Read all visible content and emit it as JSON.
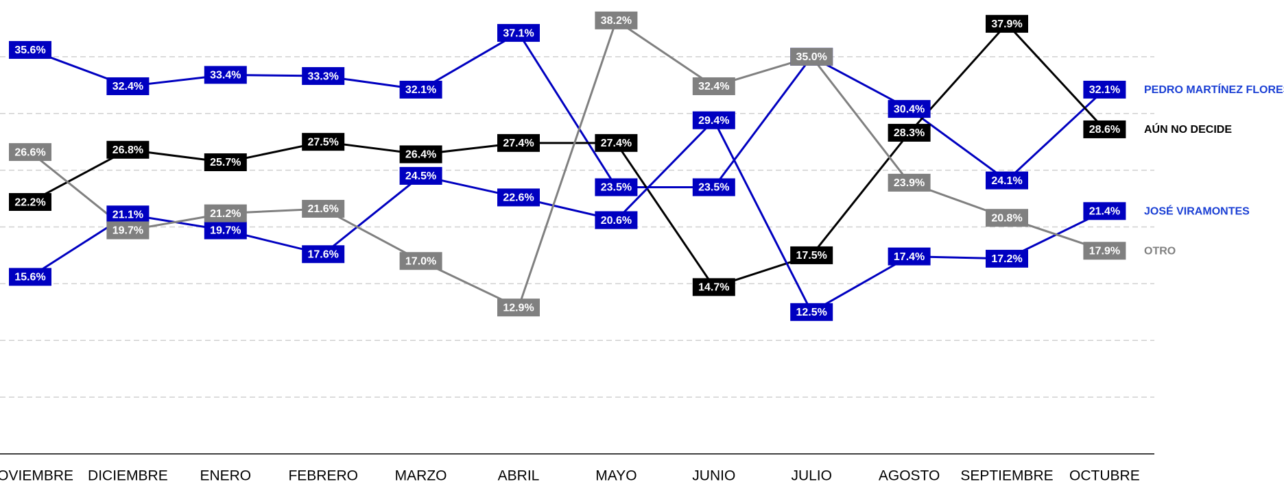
{
  "chart_data": {
    "type": "line",
    "categories": [
      "NOVIEMBRE",
      "DICIEMBRE",
      "ENERO",
      "FEBRERO",
      "MARZO",
      "ABRIL",
      "MAYO",
      "JUNIO",
      "JULIO",
      "AGOSTO",
      "SEPTIEMBRE",
      "OCTUBRE"
    ],
    "ylim": [
      0,
      40
    ],
    "yticks": [
      5,
      10,
      15,
      20,
      25,
      30,
      35
    ],
    "grid": true,
    "series": [
      {
        "name": "PEDRO MARTÍNEZ FLORES",
        "color": "#0000c0",
        "label_color": "#1a3fd4",
        "values": [
          35.6,
          32.4,
          33.4,
          33.3,
          32.1,
          37.1,
          23.5,
          23.5,
          35.0,
          30.4,
          24.1,
          32.1
        ],
        "value_labels": [
          "35.6%",
          "32.4%",
          "33.4%",
          "33.3%",
          "32.1%",
          "37.1%",
          "23.5%",
          "23.5%",
          "35.0%",
          "30.4%",
          "24.1%",
          "32.1%"
        ]
      },
      {
        "name": "AÚN NO DECIDE",
        "color": "#000000",
        "label_color": "#000000",
        "values": [
          22.2,
          26.8,
          25.7,
          27.5,
          26.4,
          27.4,
          27.4,
          14.7,
          17.5,
          28.3,
          37.9,
          28.6
        ],
        "value_labels": [
          "22.2%",
          "26.8%",
          "25.7%",
          "27.5%",
          "26.4%",
          "27.4%",
          "27.4%",
          "14.7%",
          "17.5%",
          "28.3%",
          "37.9%",
          "28.6%"
        ]
      },
      {
        "name": "JOSÉ VIRAMONTES",
        "color": "#0000c0",
        "label_color": "#1a3fd4",
        "values": [
          15.6,
          21.1,
          19.7,
          17.6,
          24.5,
          22.6,
          20.6,
          29.4,
          12.5,
          17.4,
          17.2,
          21.4
        ],
        "value_labels": [
          "15.6%",
          "21.1%",
          "19.7%",
          "17.6%",
          "24.5%",
          "22.6%",
          "20.6%",
          "29.4%",
          "12.5%",
          "17.4%",
          "17.2%",
          "21.4%"
        ]
      },
      {
        "name": "OTRO",
        "color": "#808080",
        "label_color": "#808080",
        "values": [
          26.6,
          19.7,
          21.2,
          21.6,
          17.0,
          12.9,
          38.2,
          32.4,
          35.0,
          23.9,
          20.8,
          17.9
        ],
        "value_labels": [
          "26.6%",
          "19.7%",
          "21.2%",
          "21.6%",
          "17.0%",
          "12.9%",
          "38.2%",
          "32.4%",
          "35.0%",
          "23.9%",
          "20.8%",
          "17.9%"
        ]
      }
    ]
  }
}
